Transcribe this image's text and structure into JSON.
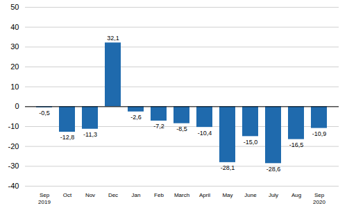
{
  "chart_data": {
    "type": "bar",
    "categories": [
      "Sep\n2019",
      "Oct",
      "Nov",
      "Dec",
      "Jan",
      "Feb",
      "March",
      "April",
      "May",
      "June",
      "July",
      "Aug",
      "Sep\n2020"
    ],
    "values": [
      -0.5,
      -12.8,
      -11.3,
      32.1,
      -2.6,
      -7.2,
      -8.5,
      -10.4,
      -28.1,
      -15.0,
      -28.6,
      -16.5,
      -10.9
    ],
    "value_labels": [
      "-0,5",
      "-12,8",
      "-11,3",
      "32,1",
      "-2,6",
      "-7,2",
      "-8,5",
      "-10,4",
      "-28,1",
      "-15,0",
      "-28,6",
      "-16,5",
      "-10,9"
    ],
    "color": "#1f6aad",
    "ylim": [
      -40,
      50
    ],
    "yticks": [
      -40,
      -30,
      -20,
      -10,
      0,
      10,
      20,
      30,
      40,
      50
    ],
    "grid": true,
    "data_labels": true
  }
}
